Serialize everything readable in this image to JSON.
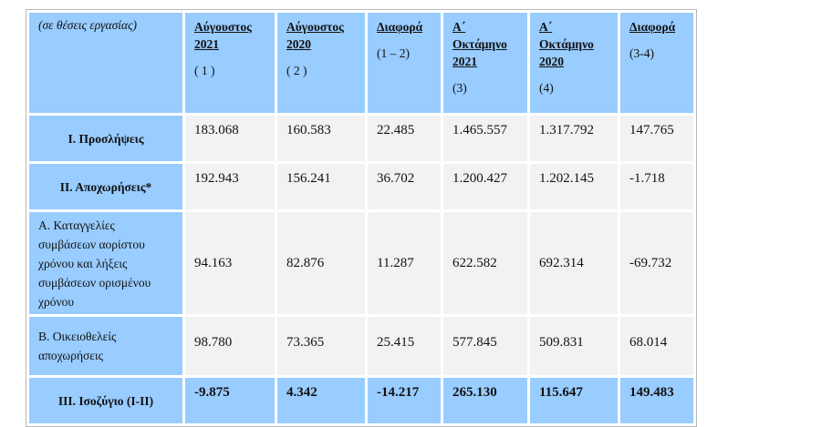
{
  "table": {
    "header": [
      {
        "note": "(σε θέσεις εργασίας)"
      },
      {
        "title": [
          "Αύγουστος",
          "2021"
        ],
        "note": "( 1 )"
      },
      {
        "title": [
          "Αύγουστος",
          "2020"
        ],
        "note": "( 2 )"
      },
      {
        "title": [
          "Διαφορά"
        ],
        "note": "(1 – 2)"
      },
      {
        "title": [
          "Α΄",
          "Οκτάμηνο",
          "2021"
        ],
        "note": "(3)"
      },
      {
        "title": [
          "Α΄",
          "Οκτάμηνο",
          "2020"
        ],
        "note": "(4)"
      },
      {
        "title": [
          "Διαφορά"
        ],
        "note": "(3-4)"
      }
    ],
    "rows": [
      [
        "Ι. Προσλήψεις",
        "183.068",
        "160.583",
        "22.485",
        "1.465.557",
        "1.317.792",
        "147.765"
      ],
      [
        "ΙΙ. Αποχωρήσεις*",
        "192.943",
        "156.241",
        "36.702",
        "1.200.427",
        "1.202.145",
        "-1.718"
      ],
      [
        "Α. Καταγγελίες συμβάσεων αορίστου χρόνου  και λήξεις συμβάσεων ορισμένου χρόνου",
        "94.163",
        "82.876",
        "11.287",
        "622.582",
        "692.314",
        "-69.732"
      ],
      [
        "Β. Οικειοθελείς αποχωρήσεις",
        "98.780",
        "73.365",
        "25.415",
        "577.845",
        "509.831",
        "68.014"
      ],
      [
        "ΙΙΙ. Ισοζύγιο (Ι-ΙΙ)",
        "-9.875",
        "4.342",
        "-14.217",
        "265.130",
        "115.647",
        "149.483"
      ]
    ]
  }
}
